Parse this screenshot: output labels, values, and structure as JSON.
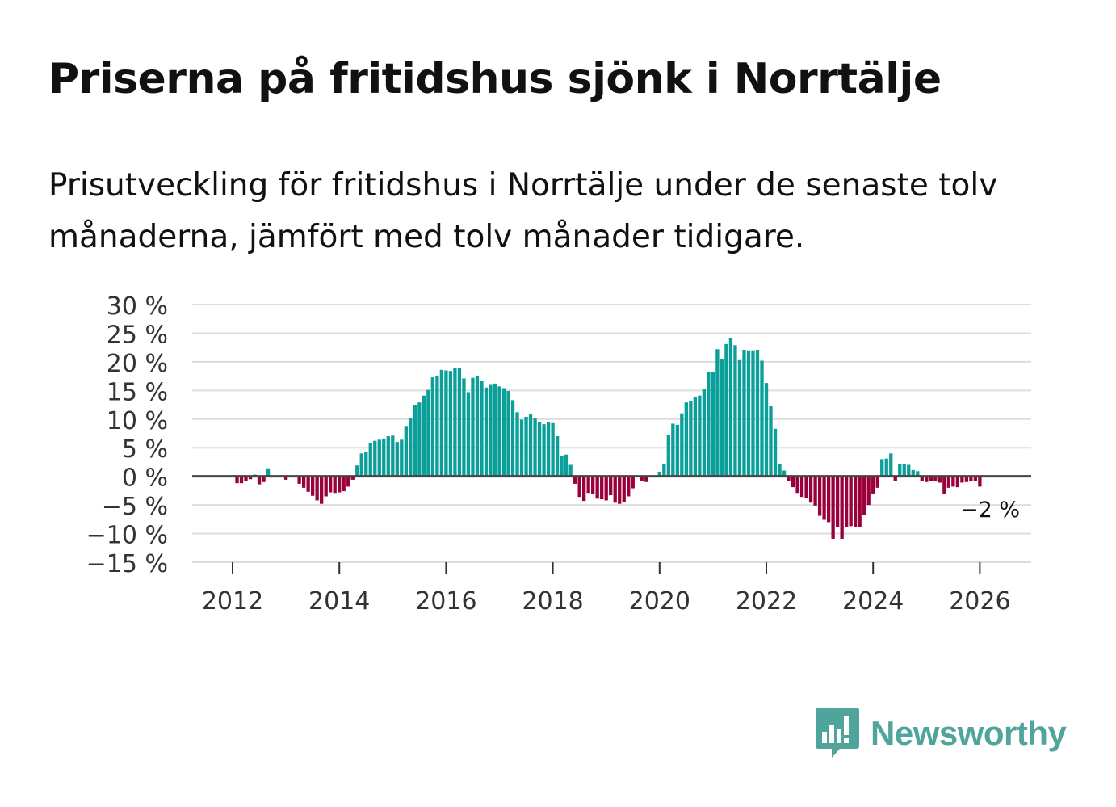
{
  "header": {
    "title": "Priserna på fritidshus sjönk i Norrtälje",
    "subtitle": "Prisutveckling för fritidshus i Norrtälje under de senaste tolv månaderna, jämfört med tolv månader tidigare."
  },
  "brand": {
    "name": "Newsworthy",
    "icon": "bar-chart-speech-bubble-icon",
    "color": "#4fa59c"
  },
  "colors": {
    "positive": "#0b9f9a",
    "negative": "#99003c",
    "gridline": "#dddddd",
    "zero_line": "#444444",
    "axis_text": "#333333"
  },
  "chart_data": {
    "type": "bar",
    "title": "Priserna på fritidshus sjönk i Norrtälje",
    "xlabel": "",
    "ylabel": "",
    "ylim": [
      -15,
      30
    ],
    "y_ticks": [
      30,
      25,
      20,
      15,
      10,
      5,
      0,
      -5,
      -10,
      -15
    ],
    "y_tick_labels": [
      "30 %",
      "25 %",
      "20 %",
      "15 %",
      "10 %",
      "5 %",
      "0 %",
      "−5 %",
      "−10 %",
      "−15 %"
    ],
    "x_ticks": [
      2012,
      2014,
      2016,
      2018,
      2020,
      2022,
      2024,
      2026
    ],
    "x_tick_labels": [
      "2012",
      "2014",
      "2016",
      "2018",
      "2020",
      "2022",
      "2024",
      "2026"
    ],
    "grid": true,
    "unit": "%",
    "series": [
      {
        "name": "Prisutveckling",
        "start": "2011-08",
        "frequency": "monthly",
        "values": [
          0,
          0,
          0,
          0,
          0,
          0,
          -1.2,
          -1.2,
          -0.8,
          -0.5,
          0.3,
          -1.4,
          -1.0,
          1.4,
          0,
          0,
          0,
          -0.6,
          0,
          0,
          -1.3,
          -2.0,
          -2.7,
          -3.4,
          -4.2,
          -4.8,
          -3.5,
          -2.8,
          -2.9,
          -2.8,
          -2.6,
          -1.8,
          -0.6,
          1.9,
          4.0,
          4.3,
          5.8,
          6.2,
          6.4,
          6.6,
          7.0,
          7.1,
          6.0,
          6.4,
          8.8,
          10.2,
          12.5,
          12.9,
          14.1,
          15.1,
          17.3,
          17.6,
          18.6,
          18.5,
          18.4,
          18.9,
          18.9,
          17.1,
          14.7,
          17.2,
          17.6,
          16.6,
          15.5,
          16.1,
          16.2,
          15.7,
          15.4,
          14.9,
          13.3,
          11.2,
          9.9,
          10.4,
          10.8,
          10.1,
          9.4,
          9.1,
          9.5,
          9.3,
          7.0,
          3.6,
          3.8,
          2.0,
          -1.3,
          -3.6,
          -4.3,
          -2.9,
          -3.1,
          -3.9,
          -4.0,
          -4.2,
          -3.3,
          -4.6,
          -4.8,
          -4.5,
          -3.5,
          -2.1,
          0,
          -0.8,
          -1.0,
          0,
          0,
          0.8,
          2.1,
          7.2,
          9.2,
          9.0,
          11.0,
          12.9,
          13.2,
          13.9,
          14.1,
          15.2,
          18.2,
          18.3,
          22.2,
          20.4,
          23.1,
          24.1,
          22.9,
          20.3,
          22.1,
          22.0,
          22.0,
          22.1,
          20.2,
          16.3,
          12.3,
          8.3,
          2.1,
          1.0,
          -0.8,
          -1.9,
          -2.9,
          -3.6,
          -3.8,
          -4.6,
          -5.1,
          -6.9,
          -7.6,
          -8.0,
          -10.9,
          -8.9,
          -10.9,
          -8.9,
          -8.7,
          -8.8,
          -8.8,
          -6.8,
          -5.0,
          -3.0,
          -2.0,
          3.0,
          3.1,
          4.0,
          -0.8,
          2.1,
          2.2,
          2.0,
          1.1,
          0.9,
          -0.9,
          -1.0,
          -0.8,
          -0.9,
          -1.1,
          -3.0,
          -2.0,
          -1.8,
          -1.9,
          -1.1,
          -1.0,
          -0.9,
          -0.8,
          -1.8
        ]
      }
    ],
    "last_value_label": "−2 %"
  }
}
